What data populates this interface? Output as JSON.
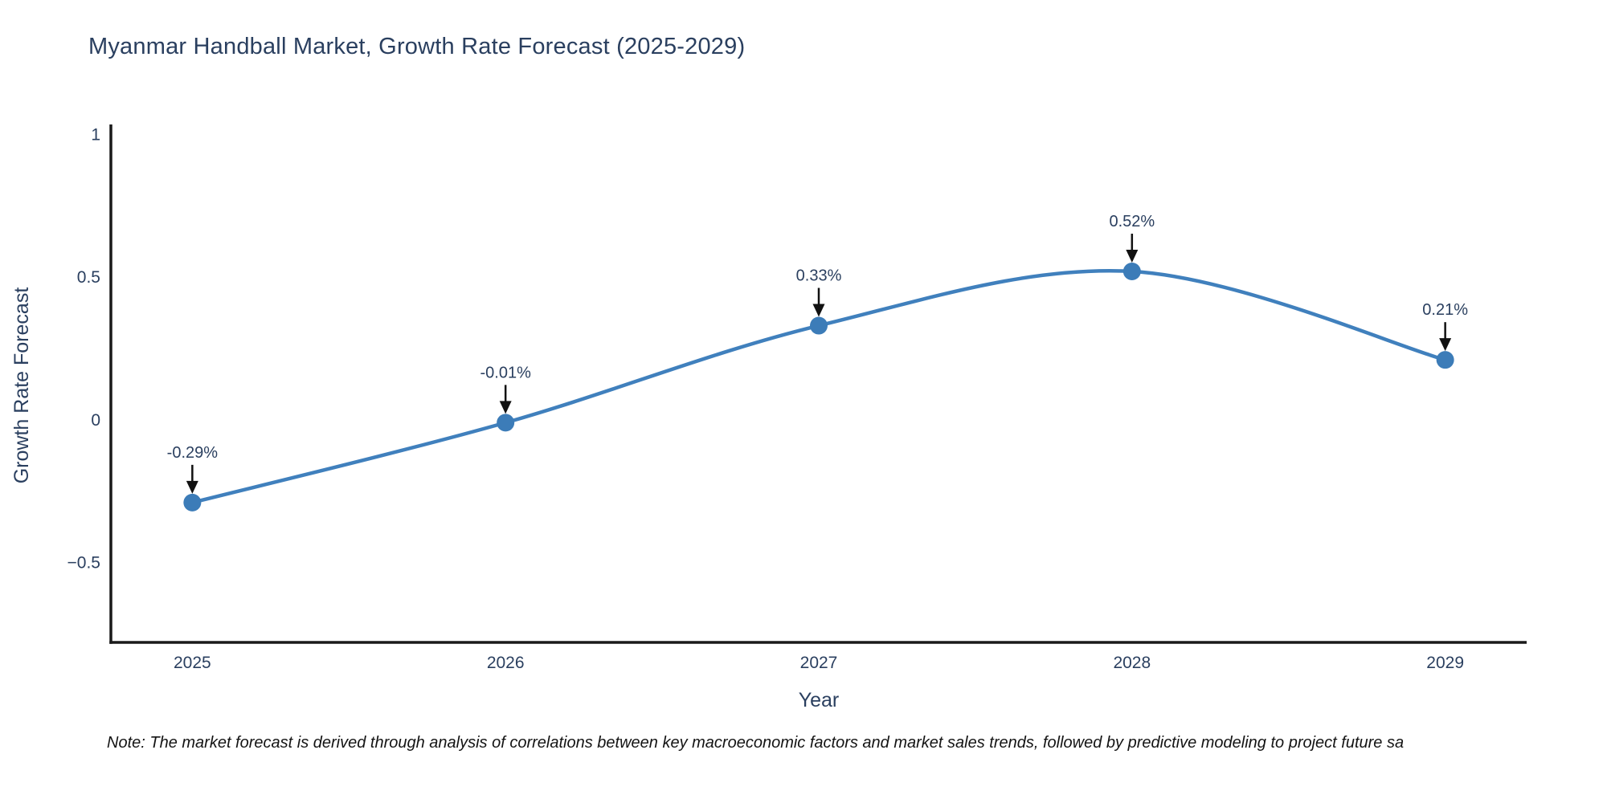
{
  "chart": {
    "title": "Myanmar Handball Market, Growth Rate Forecast (2025-2029)",
    "x_axis_title": "Year",
    "y_axis_title": "Growth Rate Forecast",
    "note": "Note: The market forecast is derived through analysis of correlations between key macroeconomic factors and market sales trends, followed by predictive modeling to project future sa"
  },
  "chart_data": {
    "type": "line",
    "title": "Myanmar Handball Market, Growth Rate Forecast (2025-2029)",
    "xlabel": "Year",
    "ylabel": "Growth Rate Forecast",
    "x": [
      2025,
      2026,
      2027,
      2028,
      2029
    ],
    "categories": [
      "2025",
      "2026",
      "2027",
      "2028",
      "2029"
    ],
    "values": [
      -0.29,
      -0.01,
      0.33,
      0.52,
      0.21
    ],
    "point_labels": [
      "-0.29%",
      "-0.01%",
      "0.33%",
      "0.52%",
      "0.21%"
    ],
    "yticks": [
      {
        "v": 1,
        "label": "1"
      },
      {
        "v": 0.5,
        "label": "0.5"
      },
      {
        "v": 0,
        "label": "0"
      },
      {
        "v": -0.5,
        "label": "−0.5"
      }
    ],
    "xlim": [
      2024.74,
      2029.26
    ],
    "ylim": [
      -0.78,
      1.035
    ],
    "grid": false,
    "legend": false,
    "line_color": "#4080bd",
    "marker_color": "#3c7cb8",
    "annotation_arrow_color": "#111111",
    "axis_color": "#1a1a1a",
    "text_color": "#2a3f5f"
  }
}
